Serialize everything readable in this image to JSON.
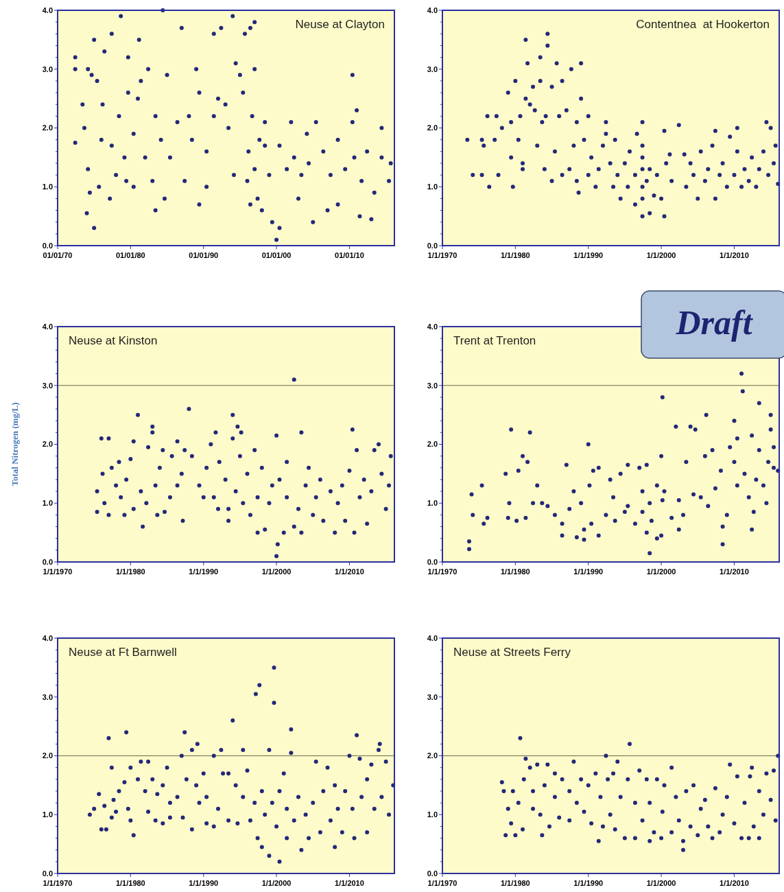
{
  "chart_data": [
    {
      "type": "scatter",
      "title": "Neuse at Clayton",
      "color": "#23287a",
      "marker": "circle",
      "xlim": [
        "1970-01-01",
        "2016-03-01"
      ],
      "xticks": [
        {
          "value": "1970-01-01",
          "label": "01/01/70"
        },
        {
          "value": "1980-01-01",
          "label": "01/01/80"
        },
        {
          "value": "1990-01-01",
          "label": "01/01/90"
        },
        {
          "value": "2000-01-01",
          "label": "01/01/00"
        },
        {
          "value": "2010-01-01",
          "label": "01/01/10"
        }
      ],
      "ylim": [
        0,
        4
      ],
      "yticks": [
        {
          "value": 0,
          "label": "0.0"
        },
        {
          "value": 0.2,
          "label": null
        },
        {
          "value": 0.4,
          "label": null
        },
        {
          "value": 0.6,
          "label": null
        },
        {
          "value": 0.8,
          "label": null
        },
        {
          "value": 1,
          "label": "1.0"
        },
        {
          "value": 1.2,
          "label": null
        },
        {
          "value": 1.4,
          "label": null
        },
        {
          "value": 1.6,
          "label": null
        },
        {
          "value": 1.8,
          "label": null
        },
        {
          "value": 2,
          "label": "2.0"
        },
        {
          "value": 2.2,
          "label": null
        },
        {
          "value": 2.4,
          "label": null
        },
        {
          "value": 2.6,
          "label": null
        },
        {
          "value": 2.8,
          "label": null
        },
        {
          "value": 3,
          "label": "3.0"
        },
        {
          "value": 3.2,
          "label": null
        },
        {
          "value": 3.4,
          "label": null
        },
        {
          "value": 3.6,
          "label": null
        },
        {
          "value": 3.8,
          "label": null
        },
        {
          "value": 4,
          "label": "4.0"
        }
      ],
      "x": [
        "1972-06",
        "1972-06",
        "1972-06",
        "1973-06",
        "1973-09",
        "1974-01",
        "1974-03",
        "1974-03",
        "1974-06",
        "1974-09",
        "1975-01",
        "1975-01",
        "1975-06",
        "1975-09",
        "1976-01",
        "1976-03",
        "1976-06",
        "1977-06",
        "1977-06",
        "1977-03",
        "1978-01",
        "1978-06",
        "1978-09",
        "1979-03",
        "1979-06",
        "1979-09",
        "1979-09",
        "1980-06",
        "1980-06",
        "1981-01",
        "1981-03",
        "1981-06",
        "1982-01",
        "1982-06",
        "1983-01",
        "1983-06",
        "1983-06",
        "1984-03",
        "1984-06",
        "1984-09",
        "1985-01",
        "1985-06",
        "1986-06",
        "1987-01",
        "1987-06",
        "1988-01",
        "1988-06",
        "1989-01",
        "1989-06",
        "1989-06",
        "1990-06",
        "1990-06",
        "1991-06",
        "1991-06",
        "1992-01",
        "1992-06",
        "1993-01",
        "1993-06",
        "1994-01",
        "1994-03",
        "1994-06",
        "1995-01",
        "1995-06",
        "1995-09",
        "1996-01",
        "1996-03",
        "1996-06",
        "1996-06",
        "1996-09",
        "1997-01",
        "1997-01",
        "1997-01",
        "1997-06",
        "1997-09",
        "1998-01",
        "1998-06",
        "1998-06",
        "1999-01",
        "1999-06",
        "2000-01",
        "2000-06",
        "2000-06",
        "2001-06",
        "2002-01",
        "2002-06",
        "2003-01",
        "2003-06",
        "2004-03",
        "2004-06",
        "2005-01",
        "2005-06",
        "2006-06",
        "2007-01",
        "2007-06",
        "2008-06",
        "2008-06",
        "2009-06",
        "2010-06",
        "2010-06",
        "2010-09",
        "2011-01",
        "2011-06",
        "2011-09",
        "2012-06",
        "2013-01",
        "2013-06",
        "2014-06",
        "2014-06",
        "2015-06",
        "2015-09"
      ],
      "values": [
        3.2,
        3.0,
        1.75,
        2.4,
        2.0,
        0.55,
        3.0,
        1.3,
        0.9,
        2.9,
        3.5,
        0.3,
        2.8,
        1.0,
        1.8,
        2.4,
        3.3,
        3.6,
        1.7,
        0.8,
        1.2,
        2.2,
        3.9,
        1.5,
        1.1,
        3.2,
        2.6,
        1.9,
        1.0,
        2.5,
        3.5,
        2.8,
        1.5,
        3.0,
        1.1,
        2.2,
        0.6,
        1.8,
        4.0,
        0.8,
        2.9,
        1.5,
        2.1,
        3.7,
        1.1,
        2.2,
        1.8,
        3.0,
        0.7,
        2.6,
        1.0,
        1.6,
        3.6,
        2.2,
        2.5,
        3.7,
        2.4,
        2.0,
        3.9,
        1.2,
        3.1,
        2.9,
        2.6,
        3.6,
        1.1,
        1.6,
        3.7,
        0.7,
        2.2,
        3.8,
        1.3,
        3.0,
        0.8,
        1.8,
        0.6,
        1.7,
        2.1,
        1.2,
        0.4,
        0.1,
        1.7,
        0.3,
        1.3,
        2.1,
        1.5,
        0.8,
        1.2,
        1.9,
        1.4,
        0.4,
        2.1,
        1.6,
        0.6,
        1.2,
        1.8,
        0.7,
        1.3,
        2.9,
        2.1,
        1.5,
        2.3,
        0.5,
        1.1,
        1.6,
        0.45,
        0.9,
        2.0,
        1.5,
        1.1,
        1.4
      ]
    },
    {
      "type": "scatter",
      "title": "Contentnea  at Hookerton",
      "color": "#23287a",
      "marker": "circle",
      "xlim": [
        "1970-01-01",
        "2016-03-01"
      ],
      "xticks": [
        {
          "value": "1970-01-01",
          "label": "1/1/1970"
        },
        {
          "value": "1980-01-01",
          "label": "1/1/1980"
        },
        {
          "value": "1990-01-01",
          "label": "1/1/1990"
        },
        {
          "value": "2000-01-01",
          "label": "1/1/2000"
        },
        {
          "value": "2010-01-01",
          "label": "1/1/2010"
        }
      ],
      "ylim": [
        0,
        4
      ],
      "yticks": [
        {
          "value": 0,
          "label": "0.0"
        },
        {
          "value": 0.2,
          "label": null
        },
        {
          "value": 0.4,
          "label": null
        },
        {
          "value": 0.6,
          "label": null
        },
        {
          "value": 0.8,
          "label": null
        },
        {
          "value": 1,
          "label": "1.0"
        },
        {
          "value": 1.2,
          "label": null
        },
        {
          "value": 1.4,
          "label": null
        },
        {
          "value": 1.6,
          "label": null
        },
        {
          "value": 1.8,
          "label": null
        },
        {
          "value": 2,
          "label": "2.0"
        },
        {
          "value": 2.2,
          "label": null
        },
        {
          "value": 2.4,
          "label": null
        },
        {
          "value": 2.6,
          "label": null
        },
        {
          "value": 2.8,
          "label": null
        },
        {
          "value": 3,
          "label": "3.0"
        },
        {
          "value": 3.2,
          "label": null
        },
        {
          "value": 3.4,
          "label": null
        },
        {
          "value": 3.6,
          "label": null
        },
        {
          "value": 3.8,
          "label": null
        },
        {
          "value": 4,
          "label": "4.0"
        }
      ],
      "x": [
        "1973-06",
        "1974-03",
        "1975-06",
        "1975-06",
        "1975-09",
        "1976-03",
        "1976-06",
        "1977-03",
        "1977-06",
        "1977-09",
        "1978-03",
        "1979-01",
        "1979-06",
        "1979-06",
        "1979-09",
        "1980-01",
        "1980-06",
        "1980-09",
        "1981-01",
        "1981-01",
        "1981-06",
        "1981-09",
        "1981-06",
        "1982-01",
        "1982-06",
        "1982-09",
        "1983-01",
        "1983-06",
        "1983-06",
        "1983-09",
        "1984-01",
        "1984-03",
        "1984-06",
        "1984-06",
        "1985-01",
        "1985-01",
        "1985-06",
        "1985-09",
        "1986-01",
        "1986-06",
        "1986-06",
        "1987-01",
        "1987-06",
        "1987-09",
        "1988-01",
        "1988-06",
        "1988-06",
        "1988-09",
        "1989-01",
        "1989-01",
        "1989-06",
        "1990-01",
        "1990-01",
        "1990-06",
        "1991-01",
        "1991-06",
        "1992-01",
        "1992-06",
        "1992-06",
        "1993-01",
        "1993-06",
        "1993-09",
        "1994-01",
        "1994-06",
        "1995-01",
        "1995-06",
        "1995-09",
        "1996-06",
        "1996-06",
        "1996-09",
        "1997-06",
        "1997-06",
        "1997-06",
        "1997-06",
        "1997-06",
        "1997-06",
        "1997-06",
        "1998-01",
        "1998-06",
        "1998-06",
        "1999-01",
        "1999-06",
        "2000-01",
        "2000-06",
        "2000-06",
        "2000-09",
        "2001-03",
        "2001-06",
        "2002-06",
        "2003-03",
        "2003-06",
        "2004-01",
        "2004-06",
        "2005-01",
        "2005-06",
        "2006-01",
        "2006-06",
        "2007-01",
        "2007-06",
        "2007-06",
        "2008-01",
        "2008-06",
        "2009-01",
        "2009-06",
        "2010-01",
        "2010-06",
        "2010-06",
        "2011-01",
        "2011-06",
        "2012-01",
        "2012-06",
        "2013-01",
        "2013-06",
        "2014-01",
        "2014-06",
        "2014-09",
        "2015-01",
        "2015-06",
        "2015-09",
        "2016-01"
      ],
      "values": [
        1.8,
        1.2,
        1.8,
        1.2,
        1.7,
        2.2,
        1.0,
        1.8,
        2.2,
        1.2,
        2.0,
        2.6,
        2.1,
        1.5,
        1.0,
        2.8,
        1.8,
        2.2,
        1.3,
        1.4,
        3.5,
        3.1,
        2.5,
        2.4,
        2.7,
        2.3,
        1.7,
        2.8,
        3.2,
        2.1,
        1.3,
        2.2,
        3.6,
        3.4,
        1.1,
        2.7,
        1.6,
        3.1,
        2.2,
        1.2,
        2.8,
        2.3,
        1.3,
        3.0,
        1.7,
        1.1,
        2.1,
        0.9,
        2.5,
        3.1,
        1.8,
        2.2,
        1.2,
        1.5,
        1.0,
        1.3,
        1.7,
        1.9,
        2.1,
        1.4,
        1.0,
        1.8,
        1.2,
        0.8,
        1.4,
        1.0,
        1.6,
        1.2,
        0.7,
        1.9,
        2.1,
        1.5,
        1.0,
        0.5,
        1.3,
        0.8,
        1.7,
        1.1,
        0.55,
        1.3,
        0.85,
        1.2,
        0.8,
        0.5,
        1.95,
        1.4,
        1.55,
        1.1,
        2.05,
        1.55,
        1.0,
        1.4,
        1.2,
        0.8,
        1.6,
        1.1,
        1.3,
        1.7,
        0.8,
        1.95,
        1.2,
        1.4,
        1.0,
        1.85,
        1.2,
        2.0,
        1.6,
        1.0,
        1.3,
        1.1,
        1.5,
        1.0,
        1.3,
        1.6,
        2.1,
        1.2,
        2.0,
        1.4,
        1.7,
        1.05
      ]
    },
    {
      "type": "scatter",
      "title": "Neuse at Kinston",
      "ylabel": "Total Nitrogen (mg/L)",
      "color": "#23287a",
      "marker": "circle",
      "xlim": [
        "1970-01-01",
        "2016-03-01"
      ],
      "xticks": [
        {
          "value": "1970-01-01",
          "label": "1/1/1970"
        },
        {
          "value": "1980-01-01",
          "label": "1/1/1980"
        },
        {
          "value": "1990-01-01",
          "label": "1/1/1990"
        },
        {
          "value": "2000-01-01",
          "label": "1/1/2000"
        },
        {
          "value": "2010-01-01",
          "label": "1/1/2010"
        }
      ],
      "ylim": [
        0,
        4
      ],
      "yticks": [
        {
          "value": 0,
          "label": "0.0"
        },
        {
          "value": 0.2,
          "label": null
        },
        {
          "value": 0.4,
          "label": null
        },
        {
          "value": 0.6,
          "label": null
        },
        {
          "value": 0.8,
          "label": null
        },
        {
          "value": 1,
          "label": "1.0"
        },
        {
          "value": 1.2,
          "label": null
        },
        {
          "value": 1.4,
          "label": null
        },
        {
          "value": 1.6,
          "label": null
        },
        {
          "value": 1.8,
          "label": null
        },
        {
          "value": 2,
          "label": "2.0"
        },
        {
          "value": 2.2,
          "label": null
        },
        {
          "value": 2.4,
          "label": null
        },
        {
          "value": 2.6,
          "label": null
        },
        {
          "value": 2.8,
          "label": null
        },
        {
          "value": 3,
          "label": "3.0"
        },
        {
          "value": 3.2,
          "label": null
        },
        {
          "value": 3.4,
          "label": null
        },
        {
          "value": 3.6,
          "label": null
        },
        {
          "value": 3.8,
          "label": null
        },
        {
          "value": 4,
          "label": "4.0"
        }
      ],
      "ref_lines": [
        {
          "axis": "y",
          "value": 3,
          "label": null,
          "color": "#6b6b4a"
        }
      ],
      "x": [
        "1975-06",
        "1975-06",
        "1976-01",
        "1976-03",
        "1976-06",
        "1977-01",
        "1977-01",
        "1977-06",
        "1978-01",
        "1978-06",
        "1978-09",
        "1979-03",
        "1979-06",
        "1980-01",
        "1980-06",
        "1980-06",
        "1981-01",
        "1981-06",
        "1981-09",
        "1982-03",
        "1982-06",
        "1983-01",
        "1983-01",
        "1983-06",
        "1983-09",
        "1984-01",
        "1984-06",
        "1984-09",
        "1985-06",
        "1985-09",
        "1986-06",
        "1986-06",
        "1987-01",
        "1987-03",
        "1987-06",
        "1988-01",
        "1988-06",
        "1989-06",
        "1990-01",
        "1990-06",
        "1991-01",
        "1991-06",
        "1991-09",
        "1992-01",
        "1992-03",
        "1993-01",
        "1993-06",
        "1993-06",
        "1994-01",
        "1994-01",
        "1994-06",
        "1994-09",
        "1995-01",
        "1995-03",
        "1995-06",
        "1996-01",
        "1996-06",
        "1997-01",
        "1997-06",
        "1997-06",
        "1998-01",
        "1998-06",
        "1999-01",
        "1999-06",
        "2000-01",
        "2000-01",
        "2000-03",
        "2000-06",
        "2001-01",
        "2001-06",
        "2001-06",
        "2002-06",
        "2002-06",
        "2003-01",
        "2003-06",
        "2003-06",
        "2004-01",
        "2004-06",
        "2005-01",
        "2005-06",
        "2006-01",
        "2006-06",
        "2007-06",
        "2008-01",
        "2008-06",
        "2009-01",
        "2009-06",
        "2010-01",
        "2010-06",
        "2010-09",
        "2011-01",
        "2011-06",
        "2012-01",
        "2012-06",
        "2013-01",
        "2013-06",
        "2014-01",
        "2014-06",
        "2015-01",
        "2015-06",
        "2015-09"
      ],
      "values": [
        1.2,
        0.85,
        2.1,
        1.5,
        1.0,
        2.1,
        0.8,
        1.6,
        1.3,
        1.7,
        1.1,
        0.8,
        1.4,
        1.75,
        2.05,
        0.9,
        2.5,
        1.2,
        0.6,
        1.0,
        1.95,
        2.2,
        2.3,
        1.3,
        0.8,
        1.6,
        1.9,
        0.85,
        1.1,
        1.8,
        1.3,
        2.05,
        1.5,
        0.7,
        1.9,
        2.6,
        1.8,
        1.3,
        1.1,
        1.6,
        2.0,
        1.1,
        2.2,
        0.9,
        1.7,
        1.4,
        0.9,
        0.7,
        2.5,
        2.1,
        1.2,
        2.3,
        1.8,
        2.2,
        1.0,
        1.5,
        0.8,
        1.9,
        0.5,
        1.1,
        1.6,
        0.55,
        1.0,
        1.3,
        2.15,
        0.1,
        0.3,
        1.4,
        0.5,
        1.7,
        1.1,
        3.1,
        0.6,
        0.9,
        2.2,
        0.5,
        1.3,
        1.6,
        0.8,
        1.1,
        1.4,
        0.7,
        1.2,
        0.5,
        1.0,
        1.3,
        0.7,
        1.55,
        2.25,
        0.5,
        1.9,
        1.1,
        1.4,
        0.65,
        1.2,
        1.9,
        2.0,
        1.5,
        0.9,
        1.3,
        1.8
      ]
    },
    {
      "type": "scatter",
      "title": "Trent at Trenton",
      "annotations": [
        "Draft"
      ],
      "color": "#23287a",
      "marker": "circle",
      "xlim": [
        "1970-01-01",
        "2016-03-01"
      ],
      "xticks": [
        {
          "value": "1970-01-01",
          "label": "1/1/1970"
        },
        {
          "value": "1980-01-01",
          "label": "1/1/1980"
        },
        {
          "value": "1990-01-01",
          "label": "1/1/1990"
        },
        {
          "value": "2000-01-01",
          "label": "1/1/2000"
        },
        {
          "value": "2010-01-01",
          "label": "1/1/2010"
        }
      ],
      "ylim": [
        0,
        4
      ],
      "yticks": [
        {
          "value": 0,
          "label": "0.0"
        },
        {
          "value": 0.2,
          "label": null
        },
        {
          "value": 0.4,
          "label": null
        },
        {
          "value": 0.6,
          "label": null
        },
        {
          "value": 0.8,
          "label": null
        },
        {
          "value": 1,
          "label": "1.0"
        },
        {
          "value": 1.2,
          "label": null
        },
        {
          "value": 1.4,
          "label": null
        },
        {
          "value": 1.6,
          "label": null
        },
        {
          "value": 1.8,
          "label": null
        },
        {
          "value": 2,
          "label": "2.0"
        },
        {
          "value": 2.2,
          "label": null
        },
        {
          "value": 2.4,
          "label": null
        },
        {
          "value": 2.6,
          "label": null
        },
        {
          "value": 2.8,
          "label": null
        },
        {
          "value": 3,
          "label": "3.0"
        },
        {
          "value": 3.2,
          "label": null
        },
        {
          "value": 3.4,
          "label": null
        },
        {
          "value": 3.6,
          "label": null
        },
        {
          "value": 3.8,
          "label": null
        },
        {
          "value": 4,
          "label": "4.0"
        }
      ],
      "ref_lines": [
        {
          "axis": "y",
          "value": 3,
          "label": null,
          "color": "#6b6b4a"
        }
      ],
      "x": [
        "1973-09",
        "1973-09",
        "1974-01",
        "1974-03",
        "1975-06",
        "1975-09",
        "1976-03",
        "1978-09",
        "1979-01",
        "1979-03",
        "1979-06",
        "1980-03",
        "1980-06",
        "1981-01",
        "1981-06",
        "1981-09",
        "1982-01",
        "1982-06",
        "1983-01",
        "1983-09",
        "1984-06",
        "1985-06",
        "1986-06",
        "1986-06",
        "1987-01",
        "1987-06",
        "1988-01",
        "1988-06",
        "1989-01",
        "1989-06",
        "1989-06",
        "1990-01",
        "1990-03",
        "1990-06",
        "1990-09",
        "1991-06",
        "1991-06",
        "1992-06",
        "1993-01",
        "1993-06",
        "1993-09",
        "1994-06",
        "1995-01",
        "1995-06",
        "1995-06",
        "1996-06",
        "1997-01",
        "1997-06",
        "1997-06",
        "1998-01",
        "1998-01",
        "1998-06",
        "1998-06",
        "1998-09",
        "1999-06",
        "1999-06",
        "2000-01",
        "2000-01",
        "2000-03",
        "2000-03",
        "2000-06",
        "2001-06",
        "2002-01",
        "2002-06",
        "2002-06",
        "2003-01",
        "2003-06",
        "2004-01",
        "2004-06",
        "2004-09",
        "2005-06",
        "2006-01",
        "2006-03",
        "2006-06",
        "2007-01",
        "2007-06",
        "2008-03",
        "2008-06",
        "2008-06",
        "2009-01",
        "2009-06",
        "2010-01",
        "2010-01",
        "2010-06",
        "2010-06",
        "2011-01",
        "2011-03",
        "2011-06",
        "2012-01",
        "2012-06",
        "2012-06",
        "2012-09",
        "2013-01",
        "2013-06",
        "2013-06",
        "2014-01",
        "2014-06",
        "2014-09",
        "2015-01",
        "2015-01",
        "2015-06",
        "2015-06",
        "2016-01"
      ],
      "values": [
        0.35,
        0.22,
        1.15,
        0.8,
        1.3,
        0.65,
        0.75,
        1.5,
        0.75,
        1.0,
        2.25,
        0.7,
        1.55,
        1.8,
        0.75,
        1.7,
        2.2,
        1.0,
        1.3,
        1.0,
        0.95,
        0.8,
        0.65,
        0.45,
        1.65,
        0.9,
        1.2,
        0.42,
        1.0,
        0.38,
        0.55,
        2.0,
        1.3,
        0.65,
        1.55,
        0.45,
        1.6,
        0.8,
        1.4,
        1.1,
        0.7,
        1.5,
        0.85,
        1.65,
        0.95,
        0.65,
        1.6,
        1.2,
        0.85,
        1.65,
        0.5,
        0.15,
        1.0,
        0.7,
        1.3,
        0.4,
        1.8,
        0.45,
        1.05,
        2.8,
        1.2,
        0.75,
        2.3,
        1.05,
        0.55,
        0.8,
        1.7,
        2.3,
        1.15,
        2.25,
        1.1,
        1.8,
        2.5,
        0.95,
        1.9,
        1.25,
        1.55,
        0.3,
        0.6,
        0.8,
        1.95,
        1.7,
        2.4,
        1.3,
        2.1,
        3.2,
        2.9,
        1.5,
        1.1,
        0.55,
        2.15,
        0.85,
        1.4,
        2.7,
        1.9,
        1.3,
        1.0,
        1.7,
        2.5,
        2.25,
        1.95,
        1.6,
        1.55
      ]
    },
    {
      "type": "scatter",
      "title": "Neuse at Ft Barnwell",
      "color": "#23287a",
      "marker": "circle",
      "xlim": [
        "1970-01-01",
        "2016-03-01"
      ],
      "xticks": [
        {
          "value": "1970-01-01",
          "label": "1/1/1970"
        },
        {
          "value": "1980-01-01",
          "label": "1/1/1980"
        },
        {
          "value": "1990-01-01",
          "label": "1/1/1990"
        },
        {
          "value": "2000-01-01",
          "label": "1/1/2000"
        },
        {
          "value": "2010-01-01",
          "label": "1/1/2010"
        }
      ],
      "ylim": [
        0,
        4
      ],
      "yticks": [
        {
          "value": 0,
          "label": "0.0"
        },
        {
          "value": 0.2,
          "label": null
        },
        {
          "value": 0.4,
          "label": null
        },
        {
          "value": 0.6,
          "label": null
        },
        {
          "value": 0.8,
          "label": null
        },
        {
          "value": 1,
          "label": "1.0"
        },
        {
          "value": 1.2,
          "label": null
        },
        {
          "value": 1.4,
          "label": null
        },
        {
          "value": 1.6,
          "label": null
        },
        {
          "value": 1.8,
          "label": null
        },
        {
          "value": 2,
          "label": "2.0"
        },
        {
          "value": 2.2,
          "label": null
        },
        {
          "value": 2.4,
          "label": null
        },
        {
          "value": 2.6,
          "label": null
        },
        {
          "value": 2.8,
          "label": null
        },
        {
          "value": 3,
          "label": "3.0"
        },
        {
          "value": 3.2,
          "label": null
        },
        {
          "value": 3.4,
          "label": null
        },
        {
          "value": 3.6,
          "label": null
        },
        {
          "value": 3.8,
          "label": null
        },
        {
          "value": 4,
          "label": "4.0"
        }
      ],
      "ref_lines": [
        {
          "axis": "y",
          "value": 2,
          "label": null,
          "color": "#6b6b4a"
        }
      ],
      "x": [
        "1974-06",
        "1975-01",
        "1975-09",
        "1976-01",
        "1976-06",
        "1976-09",
        "1977-01",
        "1977-06",
        "1977-06",
        "1977-09",
        "1978-01",
        "1978-06",
        "1979-03",
        "1979-06",
        "1979-09",
        "1980-01",
        "1980-01",
        "1980-06",
        "1981-01",
        "1981-06",
        "1982-01",
        "1982-06",
        "1982-06",
        "1983-01",
        "1983-06",
        "1983-09",
        "1984-06",
        "1984-06",
        "1985-01",
        "1985-06",
        "1985-06",
        "1986-06",
        "1987-01",
        "1987-03",
        "1987-06",
        "1987-09",
        "1988-06",
        "1988-06",
        "1989-01",
        "1989-03",
        "1989-06",
        "1990-01",
        "1990-06",
        "1990-06",
        "1991-06",
        "1991-06",
        "1992-01",
        "1992-06",
        "1992-09",
        "1993-06",
        "1993-06",
        "1994-01",
        "1994-06",
        "1994-09",
        "1995-06",
        "1995-06",
        "1996-01",
        "1996-06",
        "1997-01",
        "1997-03",
        "1997-06",
        "1997-09",
        "1998-01",
        "1998-01",
        "1998-06",
        "1999-01",
        "1999-01",
        "1999-06",
        "1999-09",
        "1999-09",
        "2000-01",
        "2000-06",
        "2000-06",
        "2001-01",
        "2001-06",
        "2001-06",
        "2002-01",
        "2002-01",
        "2002-06",
        "2003-01",
        "2003-06",
        "2004-01",
        "2004-06",
        "2005-01",
        "2005-06",
        "2006-01",
        "2006-06",
        "2007-01",
        "2007-06",
        "2008-01",
        "2008-01",
        "2008-06",
        "2009-01",
        "2009-06",
        "2010-01",
        "2010-06",
        "2010-09",
        "2011-01",
        "2011-06",
        "2011-09",
        "2012-06",
        "2012-06",
        "2013-01",
        "2013-06",
        "2014-01",
        "2014-03",
        "2014-06",
        "2015-01",
        "2015-06",
        "2016-01"
      ],
      "values": [
        1.0,
        1.1,
        1.35,
        0.75,
        1.15,
        0.75,
        2.3,
        1.8,
        0.95,
        1.25,
        1.05,
        1.4,
        1.55,
        2.4,
        1.1,
        1.8,
        0.9,
        0.65,
        1.6,
        1.9,
        1.4,
        1.05,
        1.9,
        1.6,
        0.9,
        1.35,
        1.5,
        0.85,
        1.8,
        0.95,
        1.2,
        1.3,
        2.0,
        0.95,
        2.4,
        1.6,
        2.1,
        0.75,
        1.5,
        2.2,
        1.2,
        1.7,
        0.85,
        1.3,
        2.0,
        0.8,
        1.1,
        2.1,
        1.7,
        0.9,
        1.7,
        2.6,
        1.5,
        0.85,
        1.3,
        2.1,
        1.75,
        0.9,
        1.2,
        3.05,
        0.6,
        3.2,
        1.4,
        0.45,
        1.0,
        2.1,
        0.3,
        1.2,
        3.5,
        2.9,
        0.8,
        1.4,
        0.2,
        1.7,
        0.6,
        1.1,
        2.45,
        2.05,
        0.9,
        1.3,
        0.4,
        1.0,
        0.6,
        1.2,
        1.9,
        0.7,
        1.4,
        1.8,
        0.9,
        0.45,
        1.5,
        1.1,
        0.7,
        1.4,
        2.0,
        1.1,
        0.6,
        2.35,
        1.95,
        1.3,
        0.7,
        1.6,
        1.85,
        1.1,
        2.1,
        2.2,
        1.3,
        1.9,
        1.0,
        1.5
      ]
    },
    {
      "type": "scatter",
      "title": "Neuse at Streets Ferry",
      "color": "#23287a",
      "marker": "circle",
      "xlim": [
        "1970-01-01",
        "2016-03-01"
      ],
      "xticks": [
        {
          "value": "1970-01-01",
          "label": "1/1/1970"
        },
        {
          "value": "1980-01-01",
          "label": "1/1/1980"
        },
        {
          "value": "1990-01-01",
          "label": "1/1/1990"
        },
        {
          "value": "2000-01-01",
          "label": "1/1/2000"
        },
        {
          "value": "2010-01-01",
          "label": "1/1/2010"
        }
      ],
      "ylim": [
        0,
        4
      ],
      "yticks": [
        {
          "value": 0,
          "label": "0.0"
        },
        {
          "value": 0.2,
          "label": null
        },
        {
          "value": 0.4,
          "label": null
        },
        {
          "value": 0.6,
          "label": null
        },
        {
          "value": 0.8,
          "label": null
        },
        {
          "value": 1,
          "label": "1.0"
        },
        {
          "value": 1.2,
          "label": null
        },
        {
          "value": 1.4,
          "label": null
        },
        {
          "value": 1.6,
          "label": null
        },
        {
          "value": 1.8,
          "label": null
        },
        {
          "value": 2,
          "label": "2.0"
        },
        {
          "value": 2.2,
          "label": null
        },
        {
          "value": 2.4,
          "label": null
        },
        {
          "value": 2.6,
          "label": null
        },
        {
          "value": 2.8,
          "label": null
        },
        {
          "value": 3,
          "label": "3.0"
        },
        {
          "value": 3.2,
          "label": null
        },
        {
          "value": 3.4,
          "label": null
        },
        {
          "value": 3.6,
          "label": null
        },
        {
          "value": 3.8,
          "label": null
        },
        {
          "value": 4,
          "label": "4.0"
        }
      ],
      "ref_lines": [
        {
          "axis": "y",
          "value": 2,
          "label": null,
          "color": "#6b6b4a"
        }
      ],
      "x": [
        "1978-03",
        "1978-06",
        "1978-09",
        "1979-01",
        "1979-06",
        "1979-09",
        "1980-01",
        "1980-06",
        "1980-09",
        "1981-01",
        "1981-03",
        "1981-06",
        "1982-01",
        "1982-06",
        "1982-06",
        "1983-01",
        "1983-06",
        "1983-09",
        "1984-01",
        "1984-06",
        "1984-09",
        "1985-06",
        "1985-06",
        "1986-01",
        "1986-06",
        "1987-06",
        "1987-06",
        "1988-01",
        "1988-06",
        "1989-01",
        "1989-06",
        "1990-01",
        "1990-06",
        "1991-01",
        "1991-06",
        "1991-09",
        "1992-01",
        "1992-06",
        "1992-09",
        "1993-01",
        "1993-06",
        "1993-09",
        "1994-01",
        "1994-06",
        "1995-01",
        "1995-06",
        "1995-09",
        "1996-06",
        "1996-06",
        "1997-01",
        "1997-06",
        "1998-01",
        "1998-06",
        "1998-06",
        "1999-01",
        "1999-06",
        "2000-01",
        "2000-03",
        "2000-06",
        "2001-06",
        "2001-06",
        "2002-01",
        "2002-06",
        "2003-01",
        "2003-01",
        "2003-06",
        "2004-01",
        "2004-06",
        "2005-01",
        "2005-06",
        "2006-01",
        "2006-06",
        "2007-01",
        "2007-06",
        "2008-01",
        "2008-06",
        "2009-01",
        "2009-06",
        "2010-01",
        "2010-06",
        "2011-01",
        "2011-06",
        "2012-01",
        "2012-03",
        "2012-06",
        "2012-09",
        "2013-06",
        "2013-06",
        "2014-01",
        "2014-06",
        "2015-01",
        "2015-06",
        "2015-09",
        "2016-01"
      ],
      "values": [
        1.55,
        1.4,
        0.65,
        1.1,
        0.85,
        1.4,
        0.65,
        1.2,
        2.3,
        0.75,
        1.6,
        1.95,
        1.8,
        1.1,
        1.4,
        1.85,
        1.0,
        0.65,
        1.5,
        1.85,
        0.8,
        1.3,
        1.7,
        0.95,
        1.6,
        0.9,
        1.4,
        1.9,
        1.2,
        1.6,
        1.05,
        1.5,
        0.85,
        1.7,
        0.55,
        1.3,
        0.8,
        2.0,
        1.6,
        1.0,
        1.7,
        0.75,
        1.9,
        1.3,
        0.6,
        1.6,
        2.2,
        0.6,
        1.2,
        1.75,
        0.9,
        1.6,
        0.55,
        1.2,
        0.7,
        1.6,
        0.6,
        1.05,
        1.5,
        1.8,
        0.7,
        1.3,
        0.9,
        0.55,
        0.4,
        1.4,
        0.8,
        1.5,
        0.65,
        1.1,
        1.25,
        0.8,
        0.6,
        1.45,
        0.7,
        1.0,
        1.3,
        1.85,
        0.85,
        1.65,
        0.6,
        1.2,
        0.6,
        1.65,
        1.8,
        0.8,
        0.6,
        1.4,
        1.0,
        1.7,
        1.25,
        1.75,
        0.9,
        2.0
      ]
    }
  ]
}
